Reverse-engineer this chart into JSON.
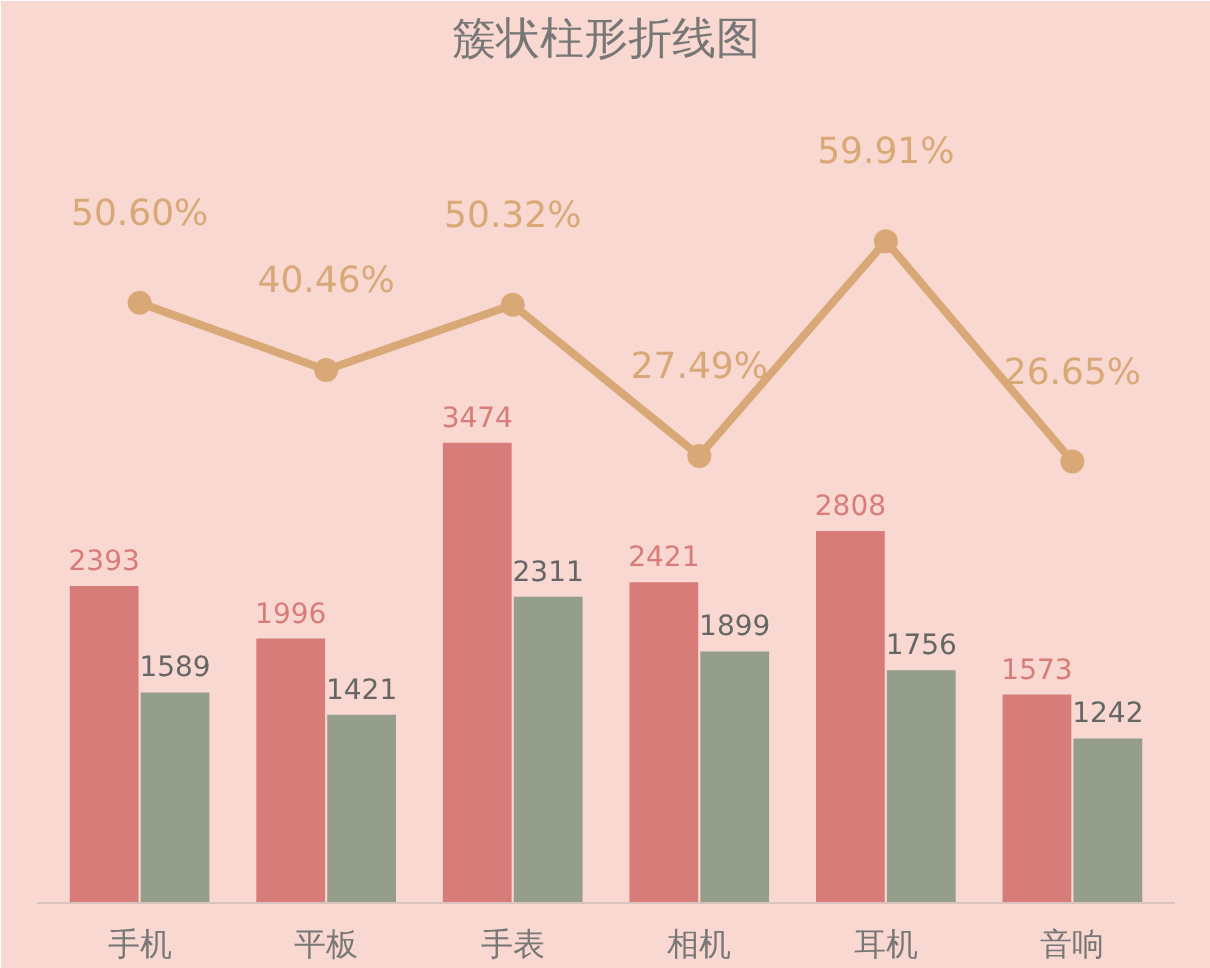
{
  "chart_data": {
    "type": "bar",
    "title": "簇状柱形折线图",
    "categories": [
      "手机",
      "平板",
      "手表",
      "相机",
      "耳机",
      "音响"
    ],
    "ylim": [
      0,
      6250
    ],
    "y2lim": [
      -40,
      85
    ],
    "tick_labels": "x",
    "grid": false,
    "marker": "circle",
    "line_style": "solid",
    "series": [
      {
        "color": "#d87c7a",
        "values": [
          2393,
          1996,
          3474,
          2421,
          2808,
          1573
        ],
        "value_labels": [
          "2393",
          "1996",
          "3474",
          "2421",
          "2808",
          "1573"
        ]
      },
      {
        "color": "#949e8b",
        "values": [
          1589,
          1421,
          2311,
          1899,
          1756,
          1242
        ],
        "value_labels": [
          "1589",
          "1421",
          "2311",
          "1899",
          "1756",
          "1242"
        ]
      },
      {
        "type": "line",
        "axis": "y2",
        "color": "#d9a877",
        "values": [
          50.6,
          40.46,
          50.32,
          27.49,
          59.91,
          26.65
        ],
        "value_labels": [
          "50.60%",
          "40.46%",
          "50.32%",
          "27.49%",
          "59.91%",
          "26.65%"
        ]
      }
    ]
  }
}
